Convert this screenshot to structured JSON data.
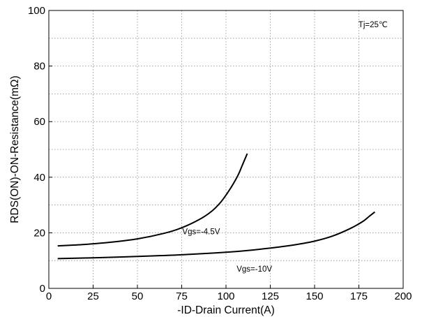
{
  "chart_data": {
    "type": "line",
    "title": "",
    "xlabel": "-ID-Drain Current(A)",
    "ylabel": "RDS(ON)-ON-Resistance(mΩ)",
    "xlim": [
      0,
      200
    ],
    "ylim": [
      0,
      100
    ],
    "xticks": [
      "0",
      "25",
      "50",
      "75",
      "100",
      "125",
      "150",
      "175",
      "200"
    ],
    "yticks": [
      "0",
      "20",
      "40",
      "60",
      "80",
      "100"
    ],
    "grid": true,
    "annotations": [
      {
        "text": "Tj=25℃",
        "x": 183,
        "y": 94
      },
      {
        "text": "Vgs=-4.5V",
        "x": 86,
        "y": 19.5
      },
      {
        "text": "Vgs=-10V",
        "x": 116,
        "y": 6
      }
    ],
    "series": [
      {
        "name": "Vgs=-4.5V",
        "color": "#000000",
        "x": [
          5,
          20,
          35,
          50,
          65,
          75,
          85,
          92,
          97,
          101,
          104,
          107,
          109,
          111,
          112
        ],
        "y": [
          15.3,
          15.8,
          16.6,
          17.8,
          19.8,
          21.8,
          24.8,
          27.8,
          31,
          34.5,
          37.5,
          41,
          44,
          47,
          48.5
        ]
      },
      {
        "name": "Vgs=-10V",
        "color": "#000000",
        "x": [
          5,
          25,
          50,
          75,
          100,
          115,
          130,
          140,
          150,
          160,
          170,
          177,
          181,
          184
        ],
        "y": [
          10.7,
          11,
          11.5,
          12.1,
          13,
          13.8,
          14.9,
          15.8,
          17,
          18.8,
          21.5,
          24,
          26,
          27.5
        ]
      }
    ]
  }
}
